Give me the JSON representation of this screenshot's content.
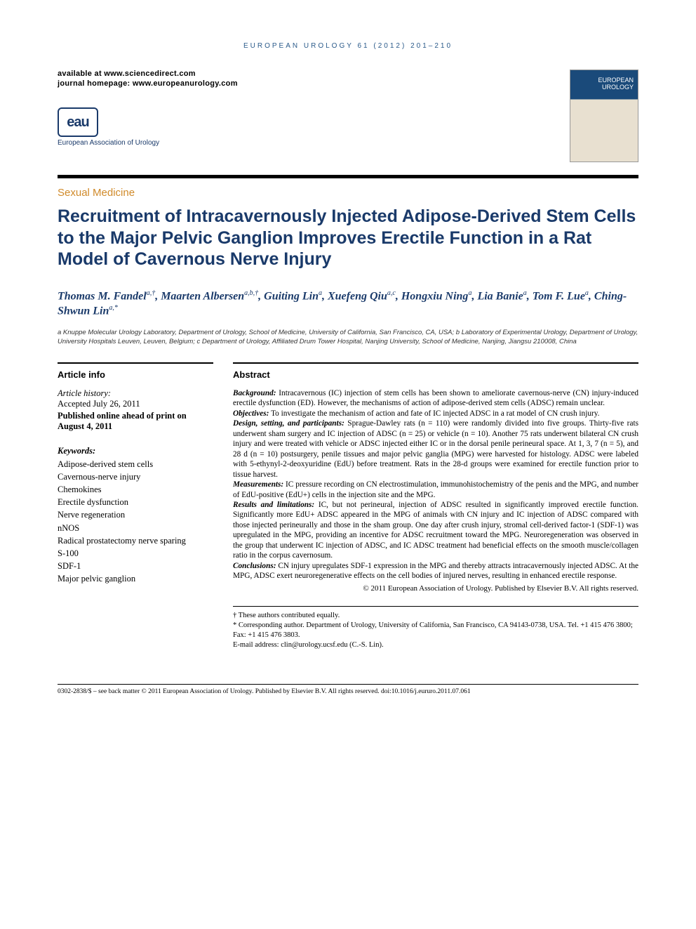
{
  "running_head": "EUROPEAN UROLOGY 61 (2012) 201–210",
  "header": {
    "available": "available at www.sciencedirect.com",
    "homepage": "journal homepage: www.europeanurology.com",
    "eau_text": "European Association of Urology"
  },
  "section_label": "Sexual Medicine",
  "title": "Recruitment of Intracavernously Injected Adipose-Derived Stem Cells to the Major Pelvic Ganglion Improves Erectile Function in a Rat Model of Cavernous Nerve Injury",
  "authors_html": "Thomas M. Fandel<sup>a,†</sup>, Maarten Albersen<sup>a,b,†</sup>, Guiting Lin<sup>a</sup>, Xuefeng Qiu<sup>a,c</sup>, Hongxiu Ning<sup>a</sup>, Lia Banie<sup>a</sup>, Tom F. Lue<sup>a</sup>, Ching-Shwun Lin<sup>a,*</sup>",
  "affiliations": "a Knuppe Molecular Urology Laboratory, Department of Urology, School of Medicine, University of California, San Francisco, CA, USA; b Laboratory of Experimental Urology, Department of Urology, University Hospitals Leuven, Leuven, Belgium; c Department of Urology, Affiliated Drum Tower Hospital, Nanjing University, School of Medicine, Nanjing, Jiangsu 210008, China",
  "article_info": {
    "heading": "Article info",
    "history_label": "Article history:",
    "accepted": "Accepted July 26, 2011",
    "published": "Published online ahead of print on August 4, 2011",
    "keywords_label": "Keywords:",
    "keywords": [
      "Adipose-derived stem cells",
      "Cavernous-nerve injury",
      "Chemokines",
      "Erectile dysfunction",
      "Nerve regeneration",
      "nNOS",
      "Radical prostatectomy nerve sparing",
      "S-100",
      "SDF-1",
      "Major pelvic ganglion"
    ]
  },
  "abstract": {
    "heading": "Abstract",
    "sections": {
      "background": {
        "label": "Background:",
        "text": "Intracavernous (IC) injection of stem cells has been shown to ameliorate cavernous-nerve (CN) injury-induced erectile dysfunction (ED). However, the mechanisms of action of adipose-derived stem cells (ADSC) remain unclear."
      },
      "objectives": {
        "label": "Objectives:",
        "text": "To investigate the mechanism of action and fate of IC injected ADSC in a rat model of CN crush injury."
      },
      "design": {
        "label": "Design, setting, and participants:",
        "text": "Sprague-Dawley rats (n = 110) were randomly divided into five groups. Thirty-five rats underwent sham surgery and IC injection of ADSC (n = 25) or vehicle (n = 10). Another 75 rats underwent bilateral CN crush injury and were treated with vehicle or ADSC injected either IC or in the dorsal penile perineural space. At 1, 3, 7 (n = 5), and 28 d (n = 10) postsurgery, penile tissues and major pelvic ganglia (MPG) were harvested for histology. ADSC were labeled with 5-ethynyl-2-deoxyuridine (EdU) before treatment. Rats in the 28-d groups were examined for erectile function prior to tissue harvest."
      },
      "measurements": {
        "label": "Measurements:",
        "text": "IC pressure recording on CN electrostimulation, immunohistochemistry of the penis and the MPG, and number of EdU-positive (EdU+) cells in the injection site and the MPG."
      },
      "results": {
        "label": "Results and limitations:",
        "text": "IC, but not perineural, injection of ADSC resulted in significantly improved erectile function. Significantly more EdU+ ADSC appeared in the MPG of animals with CN injury and IC injection of ADSC compared with those injected perineurally and those in the sham group. One day after crush injury, stromal cell-derived factor-1 (SDF-1) was upregulated in the MPG, providing an incentive for ADSC recruitment toward the MPG. Neuroregeneration was observed in the group that underwent IC injection of ADSC, and IC ADSC treatment had beneficial effects on the smooth muscle/collagen ratio in the corpus cavernosum."
      },
      "conclusions": {
        "label": "Conclusions:",
        "text": "CN injury upregulates SDF-1 expression in the MPG and thereby attracts intracavernously injected ADSC. At the MPG, ADSC exert neuroregenerative effects on the cell bodies of injured nerves, resulting in enhanced erectile response."
      }
    },
    "copyright": "© 2011 European Association of Urology. Published by Elsevier B.V. All rights reserved."
  },
  "correspondence": {
    "equal": "† These authors contributed equally.",
    "corr": "* Corresponding author. Department of Urology, University of California, San Francisco, CA 94143-0738, USA. Tel. +1 415 476 3800; Fax: +1 415 476 3803.",
    "email_label": "E-mail address:",
    "email": "clin@urology.ucsf.edu",
    "email_who": "(C.-S. Lin)."
  },
  "footer": "0302-2838/$ – see back matter © 2011 European Association of Urology. Published by Elsevier B.V. All rights reserved.   doi:10.1016/j.eururo.2011.07.061",
  "colors": {
    "brand_blue": "#1a3a6a",
    "link_blue": "#2a5a8a",
    "section_orange": "#d08a2a",
    "rule_black": "#000000",
    "bg": "#ffffff"
  },
  "typography": {
    "title_fontsize": 25,
    "authors_fontsize": 16,
    "body_fontsize": 11.3,
    "running_head_fontsize": 10,
    "affil_fontsize": 9.5
  }
}
